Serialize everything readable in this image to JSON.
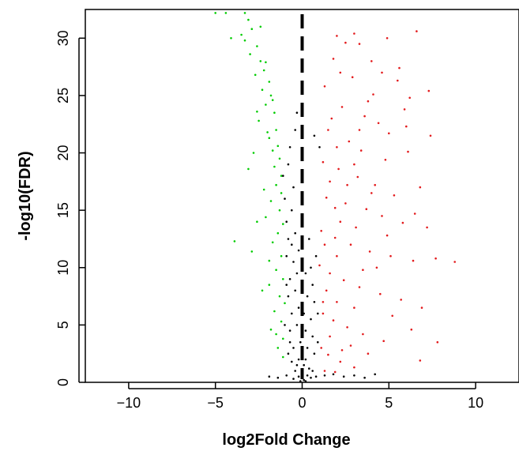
{
  "chart_data": {
    "type": "scatter",
    "title": "",
    "xlabel": "log2Fold Change",
    "ylabel": "-log10(FDR)",
    "xlim": [
      -12.5,
      12.5
    ],
    "ylim": [
      0,
      32.5
    ],
    "x_ticks": [
      -10,
      -5,
      0,
      5,
      10
    ],
    "y_ticks": [
      0,
      5,
      10,
      15,
      20,
      25,
      30
    ],
    "grid": false,
    "legend": "none",
    "reference_line": {
      "x": 0,
      "style": "dashed",
      "color": "#000000"
    },
    "series": [
      {
        "color": "#00cc00",
        "points": [
          [
            -5.0,
            32.2
          ],
          [
            -4.4,
            32.2
          ],
          [
            -3.3,
            32.2
          ],
          [
            -3.1,
            31.6
          ],
          [
            -2.9,
            30.8
          ],
          [
            -3.5,
            30.3
          ],
          [
            -4.1,
            30.0
          ],
          [
            -2.6,
            29.3
          ],
          [
            -3.0,
            28.6
          ],
          [
            -2.4,
            28.0
          ],
          [
            -2.2,
            27.2
          ],
          [
            -2.7,
            26.8
          ],
          [
            -1.9,
            26.2
          ],
          [
            -2.3,
            25.5
          ],
          [
            -1.8,
            25.0
          ],
          [
            -2.1,
            24.2
          ],
          [
            -1.6,
            23.5
          ],
          [
            -2.5,
            22.8
          ],
          [
            -1.5,
            22.0
          ],
          [
            -1.9,
            21.3
          ],
          [
            -1.4,
            20.6
          ],
          [
            -2.8,
            20.0
          ],
          [
            -1.3,
            19.5
          ],
          [
            -1.6,
            18.8
          ],
          [
            -3.1,
            18.6
          ],
          [
            -1.2,
            18.0
          ],
          [
            -1.5,
            17.2
          ],
          [
            -1.2,
            16.5
          ],
          [
            -1.8,
            15.8
          ],
          [
            -1.3,
            15.0
          ],
          [
            -2.1,
            14.4
          ],
          [
            -1.1,
            13.8
          ],
          [
            -1.4,
            13.0
          ],
          [
            -1.7,
            12.2
          ],
          [
            -3.9,
            12.3
          ],
          [
            -2.9,
            11.4
          ],
          [
            -1.2,
            11.0
          ],
          [
            -1.5,
            9.8
          ],
          [
            -1.1,
            9.0
          ],
          [
            -1.9,
            8.5
          ],
          [
            -1.3,
            7.5
          ],
          [
            -1.0,
            6.9
          ],
          [
            -1.6,
            6.2
          ],
          [
            -1.2,
            5.3
          ],
          [
            -1.8,
            4.6
          ],
          [
            -1.1,
            3.8
          ],
          [
            -1.4,
            3.0
          ],
          [
            -1.1,
            2.2
          ],
          [
            -2.4,
            31.0
          ],
          [
            -3.3,
            29.8
          ],
          [
            -2.1,
            27.9
          ],
          [
            -1.7,
            24.6
          ],
          [
            -2.6,
            23.6
          ],
          [
            -2.0,
            21.8
          ],
          [
            -1.7,
            20.2
          ],
          [
            -2.2,
            16.8
          ],
          [
            -2.6,
            14.0
          ],
          [
            -1.9,
            10.6
          ],
          [
            -2.3,
            8.0
          ],
          [
            -1.5,
            4.2
          ]
        ]
      },
      {
        "color": "#e31a1c",
        "points": [
          [
            2.0,
            30.2
          ],
          [
            3.0,
            30.4
          ],
          [
            3.3,
            29.5
          ],
          [
            4.9,
            30.0
          ],
          [
            6.6,
            30.6
          ],
          [
            2.5,
            29.6
          ],
          [
            5.6,
            27.4
          ],
          [
            7.3,
            25.4
          ],
          [
            1.8,
            28.2
          ],
          [
            2.9,
            26.6
          ],
          [
            4.1,
            25.1
          ],
          [
            5.5,
            26.3
          ],
          [
            6.2,
            24.8
          ],
          [
            1.3,
            25.8
          ],
          [
            2.3,
            24.0
          ],
          [
            3.6,
            23.2
          ],
          [
            4.4,
            22.6
          ],
          [
            5.0,
            21.7
          ],
          [
            6.0,
            22.3
          ],
          [
            7.4,
            21.5
          ],
          [
            1.5,
            22.0
          ],
          [
            2.7,
            21.0
          ],
          [
            3.4,
            20.2
          ],
          [
            4.8,
            19.4
          ],
          [
            6.1,
            20.1
          ],
          [
            1.2,
            19.2
          ],
          [
            2.1,
            18.6
          ],
          [
            3.2,
            17.9
          ],
          [
            4.2,
            17.2
          ],
          [
            5.3,
            16.3
          ],
          [
            6.8,
            17.0
          ],
          [
            1.4,
            16.1
          ],
          [
            2.5,
            15.6
          ],
          [
            3.7,
            15.1
          ],
          [
            4.6,
            14.5
          ],
          [
            5.8,
            13.9
          ],
          [
            7.2,
            13.5
          ],
          [
            1.1,
            13.2
          ],
          [
            1.9,
            12.6
          ],
          [
            2.8,
            12.0
          ],
          [
            3.9,
            11.4
          ],
          [
            5.1,
            11.0
          ],
          [
            6.4,
            10.6
          ],
          [
            7.7,
            10.8
          ],
          [
            8.8,
            10.5
          ],
          [
            1.0,
            10.2
          ],
          [
            1.6,
            9.5
          ],
          [
            2.4,
            8.9
          ],
          [
            3.3,
            8.3
          ],
          [
            4.5,
            7.7
          ],
          [
            5.7,
            7.2
          ],
          [
            6.9,
            6.5
          ],
          [
            1.2,
            6.0
          ],
          [
            1.8,
            5.4
          ],
          [
            2.6,
            4.8
          ],
          [
            3.5,
            4.2
          ],
          [
            4.7,
            3.6
          ],
          [
            6.3,
            4.6
          ],
          [
            7.8,
            3.5
          ],
          [
            1.1,
            3.0
          ],
          [
            1.5,
            2.4
          ],
          [
            2.2,
            1.8
          ],
          [
            3.0,
            1.3
          ],
          [
            1.3,
            1.0
          ],
          [
            1.9,
            0.9
          ],
          [
            4.0,
            28.0
          ],
          [
            2.2,
            27.0
          ],
          [
            3.8,
            24.5
          ],
          [
            1.7,
            23.0
          ],
          [
            2.0,
            20.5
          ],
          [
            3.0,
            19.0
          ],
          [
            1.6,
            17.5
          ],
          [
            4.0,
            16.5
          ],
          [
            2.2,
            14.0
          ],
          [
            3.1,
            13.5
          ],
          [
            1.3,
            12.0
          ],
          [
            4.3,
            10.0
          ],
          [
            2.0,
            11.0
          ],
          [
            1.4,
            8.0
          ],
          [
            3.0,
            6.5
          ],
          [
            2.0,
            7.0
          ],
          [
            5.2,
            5.8
          ],
          [
            2.8,
            3.2
          ],
          [
            1.6,
            4.0
          ],
          [
            3.8,
            2.5
          ],
          [
            6.8,
            1.9
          ],
          [
            5.9,
            23.8
          ],
          [
            4.6,
            27.0
          ],
          [
            2.6,
            17.2
          ],
          [
            3.5,
            9.8
          ],
          [
            1.9,
            15.2
          ],
          [
            4.9,
            12.8
          ],
          [
            6.5,
            14.7
          ],
          [
            2.3,
            2.8
          ],
          [
            1.2,
            7.0
          ],
          [
            3.3,
            22.0
          ]
        ]
      },
      {
        "color": "#000000",
        "points": [
          [
            -0.3,
            23.5
          ],
          [
            0.7,
            21.5
          ],
          [
            -0.7,
            20.5
          ],
          [
            -1.1,
            18.0
          ],
          [
            -0.5,
            17.0
          ],
          [
            -1.0,
            16.0
          ],
          [
            -0.6,
            15.0
          ],
          [
            -0.9,
            14.0
          ],
          [
            -0.4,
            13.0
          ],
          [
            -0.8,
            12.5
          ],
          [
            -0.2,
            11.5
          ],
          [
            -0.9,
            11.0
          ],
          [
            -0.5,
            10.5
          ],
          [
            0.4,
            12.5
          ],
          [
            0.8,
            11.0
          ],
          [
            -0.3,
            9.5
          ],
          [
            -0.7,
            9.0
          ],
          [
            0.2,
            9.5
          ],
          [
            0.6,
            8.5
          ],
          [
            -0.4,
            8.0
          ],
          [
            -0.8,
            7.5
          ],
          [
            0.3,
            7.5
          ],
          [
            0.7,
            7.0
          ],
          [
            -0.2,
            6.5
          ],
          [
            -0.6,
            6.0
          ],
          [
            0.1,
            6.0
          ],
          [
            0.5,
            5.5
          ],
          [
            -0.3,
            5.0
          ],
          [
            -0.7,
            4.5
          ],
          [
            0.2,
            4.5
          ],
          [
            0.6,
            4.0
          ],
          [
            -0.1,
            3.5
          ],
          [
            -0.5,
            3.0
          ],
          [
            0.3,
            3.0
          ],
          [
            0.7,
            2.5
          ],
          [
            -0.2,
            2.0
          ],
          [
            -0.6,
            1.8
          ],
          [
            0.1,
            1.5
          ],
          [
            0.4,
            1.2
          ],
          [
            -0.4,
            1.0
          ],
          [
            0.0,
            0.8
          ],
          [
            0.3,
            0.6
          ],
          [
            -0.2,
            0.5
          ],
          [
            0.5,
            0.4
          ],
          [
            -0.5,
            0.3
          ],
          [
            0.1,
            0.2
          ],
          [
            -0.1,
            0.1
          ],
          [
            0.2,
            0.1
          ],
          [
            0.8,
            0.5
          ],
          [
            1.3,
            0.6
          ],
          [
            1.8,
            0.7
          ],
          [
            2.4,
            0.5
          ],
          [
            3.0,
            0.6
          ],
          [
            3.6,
            0.4
          ],
          [
            4.2,
            0.7
          ],
          [
            -0.9,
            0.6
          ],
          [
            -1.4,
            0.4
          ],
          [
            -1.9,
            0.5
          ],
          [
            -0.8,
            2.5
          ],
          [
            -1.0,
            5.0
          ],
          [
            0.9,
            3.5
          ],
          [
            0.9,
            6.0
          ],
          [
            -0.9,
            8.5
          ],
          [
            0.5,
            10.0
          ],
          [
            -0.6,
            12.0
          ],
          [
            -0.8,
            19.0
          ],
          [
            1.0,
            20.5
          ],
          [
            -0.4,
            22.0
          ],
          [
            0.0,
            4.0
          ],
          [
            0.0,
            2.5
          ],
          [
            -0.3,
            1.5
          ],
          [
            0.2,
            2.0
          ],
          [
            0.6,
            1.0
          ],
          [
            -0.7,
            3.5
          ]
        ]
      }
    ]
  }
}
